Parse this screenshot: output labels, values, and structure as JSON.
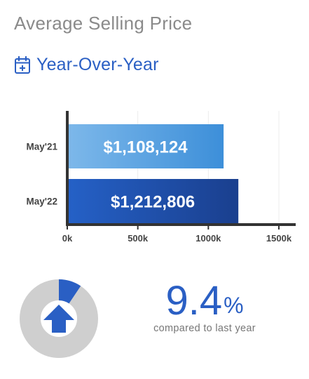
{
  "header": {
    "title": "Average Selling Price",
    "subtitle": "Year-Over-Year",
    "subtitle_icon": "calendar-plus-icon"
  },
  "colors": {
    "accent": "#2a5fc4",
    "bar_light_start": "#7db8ea",
    "bar_light_end": "#3d8fd9",
    "bar_dark_start": "#2561c7",
    "bar_dark_end": "#1a3f8e",
    "donut_track": "#cfcfcf",
    "donut_fill": "#2a5fc4"
  },
  "chart_data": {
    "type": "bar",
    "orientation": "horizontal",
    "categories": [
      "May'21",
      "May'22"
    ],
    "values": [
      1108124,
      1212806
    ],
    "data_labels": [
      "$1,108,124",
      "$1,212,806"
    ],
    "xlim": [
      0,
      1500000
    ],
    "xticks": [
      0,
      500000,
      1000000,
      1500000
    ],
    "xtick_labels": [
      "0k",
      "500k",
      "1000k",
      "1500k"
    ],
    "grid": "vertical"
  },
  "change": {
    "value": "9.4",
    "symbol": "%",
    "fraction": 0.094,
    "caption": "compared to last year",
    "direction_icon": "arrow-up-icon"
  }
}
